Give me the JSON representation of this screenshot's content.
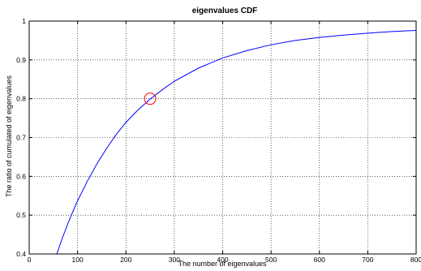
{
  "chart_data": {
    "type": "line",
    "title": "eigenvalues CDF",
    "xlabel": "The number of eigenvalues",
    "ylabel": "The ratio of cumulated of eigenvalues",
    "xlim": [
      0,
      800
    ],
    "ylim": [
      0.4,
      1
    ],
    "xticks": [
      "0",
      "100",
      "200",
      "300",
      "400",
      "500",
      "600",
      "700",
      "800"
    ],
    "yticks": [
      "0.4",
      "0.5",
      "0.6",
      "0.7",
      "0.8",
      "0.9",
      "1"
    ],
    "grid": true,
    "series": [
      {
        "color": "#0000ff",
        "x": [
          57,
          70,
          85,
          100,
          120,
          140,
          160,
          180,
          200,
          225,
          250,
          275,
          300,
          350,
          400,
          450,
          500,
          550,
          600,
          650,
          700,
          750,
          800
        ],
        "y": [
          0.4,
          0.446,
          0.494,
          0.537,
          0.587,
          0.632,
          0.672,
          0.708,
          0.739,
          0.771,
          0.799,
          0.823,
          0.845,
          0.879,
          0.905,
          0.924,
          0.939,
          0.95,
          0.958,
          0.964,
          0.969,
          0.973,
          0.976
        ]
      }
    ],
    "marker": {
      "x": 250,
      "y": 0.8,
      "shape": "circle",
      "color": "#ff0000"
    }
  }
}
